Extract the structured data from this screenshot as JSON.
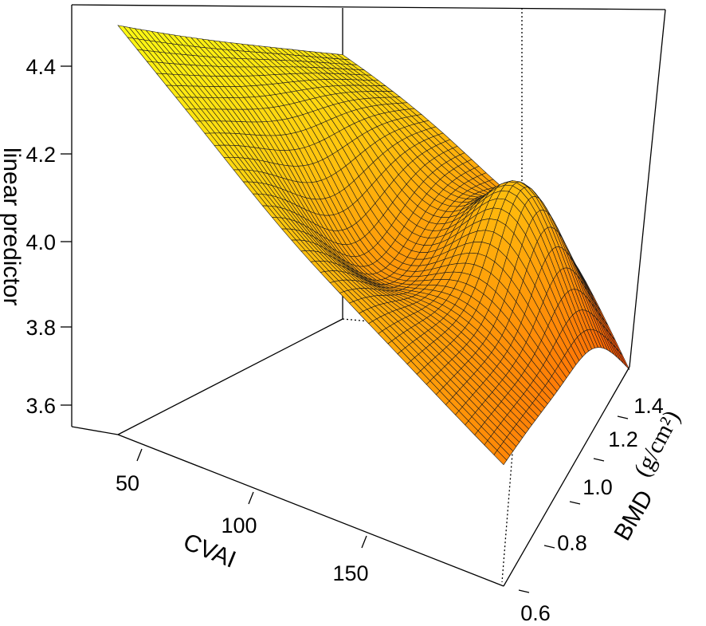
{
  "chart_data": {
    "type": "surface3d",
    "title": "",
    "zlabel": "linear predictor",
    "xlabel": "CVAI",
    "ylabel": "BMD",
    "ylabel_unit": "(g/cm²)",
    "z_ticks": [
      "4.4",
      "4.2",
      "4.0",
      "3.8",
      "3.6"
    ],
    "x_ticks": [
      "50",
      "100",
      "150"
    ],
    "y_ticks": [
      "0.6",
      "0.8",
      "1.0",
      "1.2",
      "1.4"
    ],
    "x_range": [
      20,
      200
    ],
    "y_range": [
      0.55,
      1.5
    ],
    "z_range": [
      3.55,
      4.55
    ],
    "grid_size": 40,
    "colors": {
      "surface_high": "#ffff00",
      "surface_low": "#ff5a00",
      "mesh": "#1a1a1a",
      "box": "#000000"
    },
    "surface_description_points": [
      {
        "x": 20,
        "y": 0.55,
        "z": 4.52
      },
      {
        "x": 200,
        "y": 1.5,
        "z": 3.72
      },
      {
        "x": 110,
        "y": 1.0,
        "z": 3.85
      },
      {
        "x": 160,
        "y": 1.2,
        "z": 4.0
      }
    ]
  }
}
